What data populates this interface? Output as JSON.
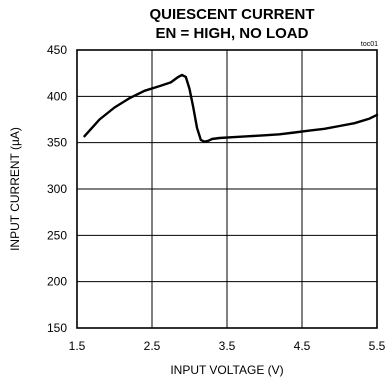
{
  "chart_data": {
    "type": "line",
    "title": "QUIESCENT CURRENT",
    "subtitle": "EN = HIGH, NO LOAD",
    "figure_code": "toc01",
    "xlabel": "INPUT VOLTAGE (V)",
    "ylabel": "INPUT CURRENT (µA)",
    "xlim": [
      1.5,
      5.5
    ],
    "ylim": [
      150,
      450
    ],
    "x_ticks": [
      1.5,
      2.5,
      3.5,
      4.5,
      5.5
    ],
    "x_tick_labels": [
      "1.5",
      "2.5",
      "3.5",
      "4.5",
      "5.5"
    ],
    "y_ticks": [
      150,
      200,
      250,
      300,
      350,
      400,
      450
    ],
    "y_tick_labels": [
      "150",
      "200",
      "250",
      "300",
      "350",
      "400",
      "450"
    ],
    "grid": true,
    "series": [
      {
        "x": [
          1.6,
          1.8,
          2.0,
          2.2,
          2.4,
          2.6,
          2.75,
          2.85,
          2.9,
          2.95,
          3.0,
          3.05,
          3.1,
          3.15,
          3.2,
          3.25,
          3.3,
          3.4,
          3.6,
          3.8,
          4.0,
          4.2,
          4.4,
          4.6,
          4.8,
          5.0,
          5.2,
          5.4,
          5.5
        ],
        "values": [
          357,
          375,
          388,
          398,
          406,
          411,
          415,
          421,
          423,
          421,
          408,
          388,
          366,
          353,
          351,
          352,
          354,
          355,
          356,
          357,
          358,
          359,
          361,
          363,
          365,
          368,
          371,
          376,
          380
        ],
        "color": "#000000"
      }
    ]
  }
}
